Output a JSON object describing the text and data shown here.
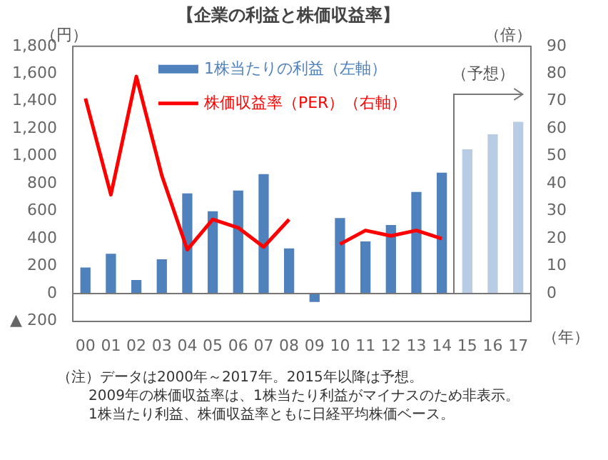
{
  "chart_data": {
    "type": "bar",
    "title": "【企業の利益と株価収益率】",
    "ylabel": "（円）",
    "y2label": "（倍）",
    "xlabel": "（年）",
    "categories": [
      "00",
      "01",
      "02",
      "03",
      "04",
      "05",
      "06",
      "07",
      "08",
      "09",
      "10",
      "11",
      "12",
      "13",
      "14",
      "15",
      "16",
      "17"
    ],
    "series": [
      {
        "name": "1株当たりの利益（左軸）",
        "axis": "y",
        "color": "#4f81bd",
        "colors": [
          "#4f81bd",
          "#4f81bd",
          "#4f81bd",
          "#4f81bd",
          "#4f81bd",
          "#4f81bd",
          "#4f81bd",
          "#4f81bd",
          "#4f81bd",
          "#4f81bd",
          "#4f81bd",
          "#4f81bd",
          "#4f81bd",
          "#4f81bd",
          "#4f81bd",
          "#b8cce4",
          "#b8cce4",
          "#b8cce4"
        ],
        "values": [
          190,
          290,
          100,
          250,
          730,
          600,
          750,
          870,
          330,
          -60,
          550,
          380,
          500,
          740,
          880,
          1050,
          1160,
          1250
        ]
      },
      {
        "name": "株価収益率（PER）（右軸）",
        "type": "line",
        "axis": "y2",
        "color": "#ff0000",
        "values": [
          71,
          36,
          79,
          43,
          16,
          27,
          24,
          17,
          27,
          null,
          18,
          23,
          21,
          23,
          20,
          null,
          null,
          null
        ]
      }
    ],
    "ylim": [
      -200,
      1800
    ],
    "yticks": [
      {
        "value": -200,
        "label": "▲ 200"
      },
      0,
      200,
      400,
      600,
      800,
      {
        "value": 1000,
        "label": "1,000"
      },
      {
        "value": 1200,
        "label": "1,200"
      },
      {
        "value": 1400,
        "label": "1,400"
      },
      {
        "value": 1600,
        "label": "1,600"
      },
      {
        "value": 1800,
        "label": "1,800"
      }
    ],
    "y2lim": [
      -10,
      90
    ],
    "y2ticks": [
      0,
      10,
      20,
      30,
      40,
      50,
      60,
      70,
      80,
      90
    ],
    "legend": "top left",
    "marker": "none",
    "annotations": [
      "（予想）",
      "（注）データは2000年～2017年。2015年以降は予想。",
      "2009年の株価収益率は、1株当たり利益がマイナスのため非表示。",
      "1株当たり利益、株価収益率ともに日経平均株価ベース。"
    ]
  }
}
